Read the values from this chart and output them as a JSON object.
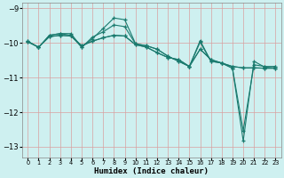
{
  "xlabel": "Humidex (Indice chaleur)",
  "bg_color": "#cef0f0",
  "grid_color": "#d9a0a0",
  "line_color": "#1a7a6e",
  "xlim": [
    -0.5,
    23.5
  ],
  "ylim": [
    -13.3,
    -8.85
  ],
  "yticks": [
    -13,
    -12,
    -11,
    -10,
    -9
  ],
  "xticks": [
    0,
    1,
    2,
    3,
    4,
    5,
    6,
    7,
    8,
    9,
    10,
    11,
    12,
    13,
    14,
    15,
    16,
    17,
    18,
    19,
    20,
    21,
    22,
    23
  ],
  "x": [
    0,
    1,
    2,
    3,
    4,
    5,
    6,
    7,
    8,
    9,
    10,
    11,
    12,
    13,
    14,
    15,
    16,
    17,
    18,
    19,
    20,
    21,
    22,
    23
  ],
  "series": [
    [
      -9.97,
      -10.12,
      -9.82,
      -9.78,
      -9.8,
      -10.08,
      -9.95,
      -9.85,
      -9.78,
      -9.8,
      -10.05,
      -10.12,
      -10.28,
      -10.42,
      -10.48,
      -10.68,
      -10.18,
      -10.48,
      -10.58,
      -10.68,
      -10.72,
      -10.72,
      -10.73,
      -10.73
    ],
    [
      -9.97,
      -10.12,
      -9.82,
      -9.78,
      -9.8,
      -10.08,
      -9.95,
      -9.85,
      -9.78,
      -9.8,
      -10.05,
      -10.12,
      -10.28,
      -10.42,
      -10.48,
      -10.68,
      -10.18,
      -10.48,
      -10.58,
      -10.68,
      -10.72,
      -10.72,
      -10.73,
      -10.73
    ],
    [
      -9.95,
      -10.13,
      -9.78,
      -9.73,
      -9.73,
      -10.12,
      -9.88,
      -9.58,
      -9.28,
      -9.33,
      -10.02,
      -10.08,
      -10.18,
      -10.38,
      -10.53,
      -10.68,
      -9.93,
      -10.53,
      -10.58,
      -10.73,
      -12.53,
      -10.63,
      -10.68,
      -10.68
    ],
    [
      -9.95,
      -10.13,
      -9.78,
      -9.73,
      -9.78,
      -10.13,
      -9.83,
      -9.68,
      -9.48,
      -9.53,
      -10.03,
      -10.08,
      -10.18,
      -10.38,
      -10.53,
      -10.68,
      -9.98,
      -10.53,
      -10.58,
      -10.73,
      -12.83,
      -10.53,
      -10.7,
      -10.68
    ]
  ]
}
